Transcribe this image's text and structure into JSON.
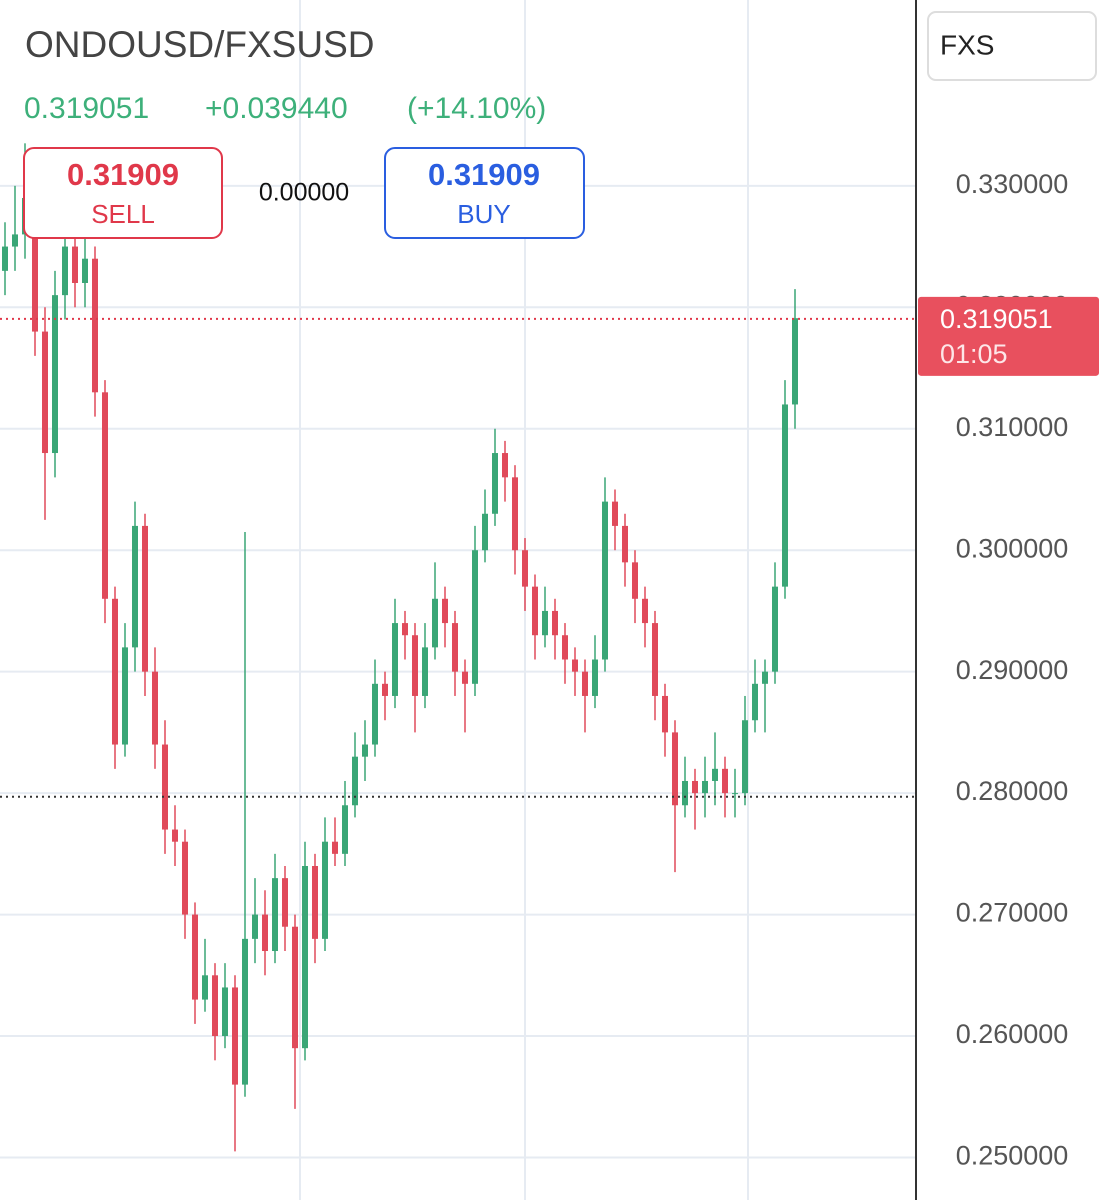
{
  "chart_data": {
    "type": "candlestick",
    "title": "ONDOUSD/FXSUSD",
    "last_price": {
      "value": 0.319051,
      "label": "0.319051"
    },
    "change": "+0.039440",
    "change_pct": "(+14.10%)",
    "sell": {
      "price": "0.31909",
      "label": "SELL"
    },
    "spread": "0.00000",
    "buy": {
      "price": "0.31909",
      "label": "BUY"
    },
    "symbol_box": "FXS",
    "countdown": "01:05",
    "ref_line": 0.2797,
    "ylim": [
      0.2465,
      0.3453
    ],
    "yticks": [
      {
        "value": 0.25,
        "label": "0.250000"
      },
      {
        "value": 0.26,
        "label": "0.260000"
      },
      {
        "value": 0.27,
        "label": "0.270000"
      },
      {
        "value": 0.28,
        "label": "0.280000"
      },
      {
        "value": 0.29,
        "label": "0.290000"
      },
      {
        "value": 0.3,
        "label": "0.300000"
      },
      {
        "value": 0.31,
        "label": "0.310000"
      },
      {
        "value": 0.32,
        "label": "0.320000"
      },
      {
        "value": 0.33,
        "label": "0.330000"
      }
    ],
    "grid": true,
    "up_color": "#3aa676",
    "down_color": "#e04a5a",
    "candles": [
      [
        0.323,
        0.327,
        0.321,
        0.325
      ],
      [
        0.325,
        0.33,
        0.323,
        0.326
      ],
      [
        0.326,
        0.3335,
        0.324,
        0.329
      ],
      [
        0.329,
        0.331,
        0.316,
        0.318
      ],
      [
        0.318,
        0.32,
        0.3025,
        0.308
      ],
      [
        0.308,
        0.323,
        0.306,
        0.321
      ],
      [
        0.321,
        0.328,
        0.319,
        0.325
      ],
      [
        0.325,
        0.327,
        0.32,
        0.322
      ],
      [
        0.322,
        0.326,
        0.32,
        0.324
      ],
      [
        0.324,
        0.325,
        0.311,
        0.313
      ],
      [
        0.313,
        0.314,
        0.294,
        0.296
      ],
      [
        0.296,
        0.297,
        0.282,
        0.284
      ],
      [
        0.284,
        0.294,
        0.283,
        0.292
      ],
      [
        0.292,
        0.304,
        0.29,
        0.302
      ],
      [
        0.302,
        0.303,
        0.288,
        0.29
      ],
      [
        0.29,
        0.292,
        0.282,
        0.284
      ],
      [
        0.284,
        0.286,
        0.275,
        0.277
      ],
      [
        0.277,
        0.279,
        0.274,
        0.276
      ],
      [
        0.276,
        0.277,
        0.268,
        0.27
      ],
      [
        0.27,
        0.271,
        0.261,
        0.263
      ],
      [
        0.263,
        0.268,
        0.262,
        0.265
      ],
      [
        0.265,
        0.266,
        0.258,
        0.26
      ],
      [
        0.26,
        0.266,
        0.259,
        0.264
      ],
      [
        0.264,
        0.265,
        0.2505,
        0.256
      ],
      [
        0.256,
        0.3015,
        0.255,
        0.268
      ],
      [
        0.268,
        0.273,
        0.266,
        0.27
      ],
      [
        0.27,
        0.272,
        0.265,
        0.267
      ],
      [
        0.267,
        0.275,
        0.266,
        0.273
      ],
      [
        0.273,
        0.274,
        0.267,
        0.269
      ],
      [
        0.269,
        0.27,
        0.254,
        0.259
      ],
      [
        0.259,
        0.276,
        0.258,
        0.274
      ],
      [
        0.274,
        0.275,
        0.266,
        0.268
      ],
      [
        0.268,
        0.278,
        0.267,
        0.276
      ],
      [
        0.276,
        0.278,
        0.274,
        0.275
      ],
      [
        0.275,
        0.281,
        0.274,
        0.279
      ],
      [
        0.279,
        0.285,
        0.278,
        0.283
      ],
      [
        0.283,
        0.286,
        0.281,
        0.284
      ],
      [
        0.284,
        0.291,
        0.283,
        0.289
      ],
      [
        0.289,
        0.29,
        0.286,
        0.288
      ],
      [
        0.288,
        0.296,
        0.287,
        0.294
      ],
      [
        0.294,
        0.295,
        0.291,
        0.293
      ],
      [
        0.293,
        0.294,
        0.285,
        0.288
      ],
      [
        0.288,
        0.294,
        0.287,
        0.292
      ],
      [
        0.292,
        0.299,
        0.291,
        0.296
      ],
      [
        0.296,
        0.297,
        0.292,
        0.294
      ],
      [
        0.294,
        0.295,
        0.288,
        0.29
      ],
      [
        0.29,
        0.291,
        0.285,
        0.289
      ],
      [
        0.289,
        0.302,
        0.288,
        0.3
      ],
      [
        0.3,
        0.305,
        0.299,
        0.303
      ],
      [
        0.303,
        0.31,
        0.302,
        0.308
      ],
      [
        0.308,
        0.309,
        0.304,
        0.306
      ],
      [
        0.306,
        0.307,
        0.298,
        0.3
      ],
      [
        0.3,
        0.301,
        0.295,
        0.297
      ],
      [
        0.297,
        0.298,
        0.291,
        0.293
      ],
      [
        0.293,
        0.297,
        0.292,
        0.295
      ],
      [
        0.295,
        0.296,
        0.291,
        0.293
      ],
      [
        0.293,
        0.294,
        0.289,
        0.291
      ],
      [
        0.291,
        0.292,
        0.288,
        0.29
      ],
      [
        0.29,
        0.291,
        0.285,
        0.288
      ],
      [
        0.288,
        0.293,
        0.287,
        0.291
      ],
      [
        0.291,
        0.306,
        0.29,
        0.304
      ],
      [
        0.304,
        0.305,
        0.3,
        0.302
      ],
      [
        0.302,
        0.303,
        0.297,
        0.299
      ],
      [
        0.299,
        0.3,
        0.294,
        0.296
      ],
      [
        0.296,
        0.297,
        0.292,
        0.294
      ],
      [
        0.294,
        0.295,
        0.286,
        0.288
      ],
      [
        0.288,
        0.289,
        0.283,
        0.285
      ],
      [
        0.285,
        0.286,
        0.2735,
        0.279
      ],
      [
        0.279,
        0.283,
        0.278,
        0.281
      ],
      [
        0.281,
        0.282,
        0.277,
        0.28
      ],
      [
        0.28,
        0.283,
        0.278,
        0.281
      ],
      [
        0.281,
        0.285,
        0.279,
        0.282
      ],
      [
        0.282,
        0.283,
        0.278,
        0.28
      ],
      [
        0.28,
        0.282,
        0.278,
        0.28
      ],
      [
        0.28,
        0.288,
        0.279,
        0.286
      ],
      [
        0.286,
        0.291,
        0.285,
        0.289
      ],
      [
        0.289,
        0.291,
        0.285,
        0.29
      ],
      [
        0.29,
        0.299,
        0.289,
        0.297
      ],
      [
        0.297,
        0.314,
        0.296,
        0.312
      ],
      [
        0.312,
        0.3215,
        0.31,
        0.3191
      ]
    ]
  }
}
